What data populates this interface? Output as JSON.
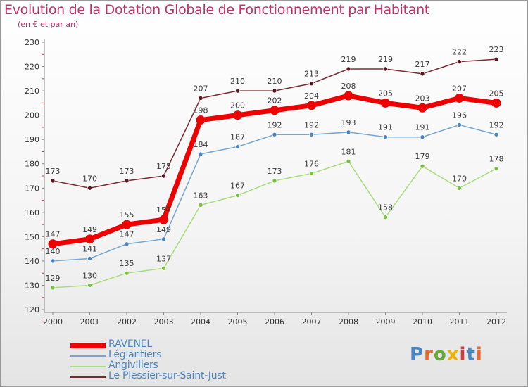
{
  "header": {
    "title": "Evolution de la Dotation Globale de Fonctionnement par Habitant",
    "subtitle": "(en € et par an)"
  },
  "logo": {
    "text": "Proxiti",
    "letter_colors": [
      "#4a86c5",
      "#e8692c",
      "#68a83a",
      "#f0b000",
      "#d93a3a",
      "#4a86c5",
      "#e8692c"
    ]
  },
  "chart_data": {
    "type": "line",
    "title": "Evolution de la Dotation Globale de Fonctionnement par Habitant",
    "subtitle": "(en € et par an)",
    "xlabel": "",
    "ylabel": "",
    "ylim": [
      120,
      230
    ],
    "yticks": [
      120,
      130,
      140,
      150,
      160,
      170,
      180,
      190,
      200,
      210,
      220,
      230
    ],
    "categories": [
      "2000",
      "2001",
      "2002",
      "2003",
      "2004",
      "2005",
      "2006",
      "2007",
      "2008",
      "2009",
      "2010",
      "2011",
      "2012"
    ],
    "grid": false,
    "legend_position": "bottom-left",
    "series": [
      {
        "name": "Le Plessier-sur-Saint-Just",
        "color": "#7a2a33",
        "marker": "#5a1520",
        "emphasis": false,
        "values": [
          173,
          170,
          173,
          175,
          207,
          210,
          210,
          213,
          219,
          219,
          217,
          222,
          223
        ]
      },
      {
        "name": "Angivillers",
        "color": "#a8dc7c",
        "marker": "#78c040",
        "emphasis": false,
        "values": [
          129,
          130,
          135,
          137,
          163,
          167,
          173,
          176,
          181,
          158,
          179,
          170,
          178
        ]
      },
      {
        "name": "Léglantiers",
        "color": "#74a6d0",
        "marker": "#4a86c5",
        "emphasis": false,
        "values": [
          140,
          141,
          147,
          149,
          184,
          187,
          192,
          192,
          193,
          191,
          191,
          196,
          192
        ]
      },
      {
        "name": "RAVENEL",
        "color": "#ee0000",
        "marker": "#ee0000",
        "emphasis": true,
        "values": [
          147,
          149,
          155,
          157,
          198,
          200,
          202,
          204,
          208,
          205,
          203,
          207,
          205
        ]
      }
    ],
    "legend_order": [
      "RAVENEL",
      "Léglantiers",
      "Angivillers",
      "Le Plessier-sur-Saint-Just"
    ]
  }
}
